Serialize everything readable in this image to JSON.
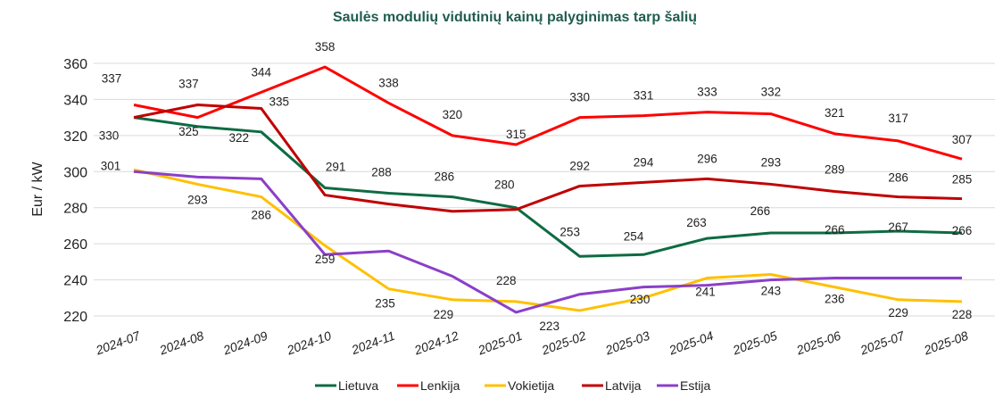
{
  "chart_data": {
    "type": "line",
    "title": "Saulės modulių vidutinių kainų palyginimas tarp šalių",
    "xlabel": "",
    "ylabel": "Eur / kW",
    "ylim": [
      220,
      360
    ],
    "yticks": [
      220,
      240,
      260,
      280,
      300,
      320,
      340,
      360
    ],
    "grid": true,
    "legend_position": "bottom",
    "categories": [
      "2024-07",
      "2024-08",
      "2024-09",
      "2024-10",
      "2024-11",
      "2024-12",
      "2025-01",
      "2025-02",
      "2025-03",
      "2025-04",
      "2025-05",
      "2025-06",
      "2025-07",
      "2025-08"
    ],
    "series": [
      {
        "name": "Lietuva",
        "color": "#0e6b43",
        "values": [
          330,
          325,
          322,
          291,
          288,
          286,
          280,
          253,
          254,
          263,
          266,
          266,
          267,
          266
        ],
        "labels": [
          null,
          325,
          322,
          291,
          288,
          286,
          280,
          253,
          254,
          263,
          266,
          266,
          267,
          266
        ]
      },
      {
        "name": "Lenkija",
        "color": "#ff0000",
        "values": [
          337,
          330,
          344,
          358,
          338,
          320,
          315,
          330,
          331,
          333,
          332,
          321,
          317,
          307
        ],
        "labels": [
          337,
          null,
          344,
          358,
          338,
          320,
          315,
          330,
          331,
          333,
          332,
          321,
          317,
          307
        ]
      },
      {
        "name": "Vokietija",
        "color": "#ffc000",
        "values": [
          301,
          293,
          286,
          259,
          235,
          229,
          228,
          223,
          230,
          241,
          243,
          236,
          229,
          228
        ],
        "labels": [
          301,
          293,
          286,
          259,
          235,
          229,
          228,
          223,
          230,
          241,
          243,
          236,
          229,
          228
        ]
      },
      {
        "name": "Latvija",
        "color": "#c00000",
        "values": [
          330,
          337,
          335,
          287,
          282,
          278,
          279,
          292,
          294,
          296,
          293,
          289,
          286,
          285
        ],
        "labels": [
          330,
          337,
          335,
          null,
          null,
          null,
          null,
          292,
          294,
          296,
          293,
          289,
          286,
          285
        ]
      },
      {
        "name": "Estija",
        "color": "#8b3fc8",
        "values": [
          300,
          297,
          296,
          254,
          256,
          242,
          222,
          232,
          236,
          237,
          240,
          241,
          241,
          241
        ],
        "labels": [
          null,
          null,
          null,
          null,
          null,
          null,
          null,
          null,
          null,
          null,
          null,
          null,
          null,
          null
        ]
      }
    ]
  }
}
